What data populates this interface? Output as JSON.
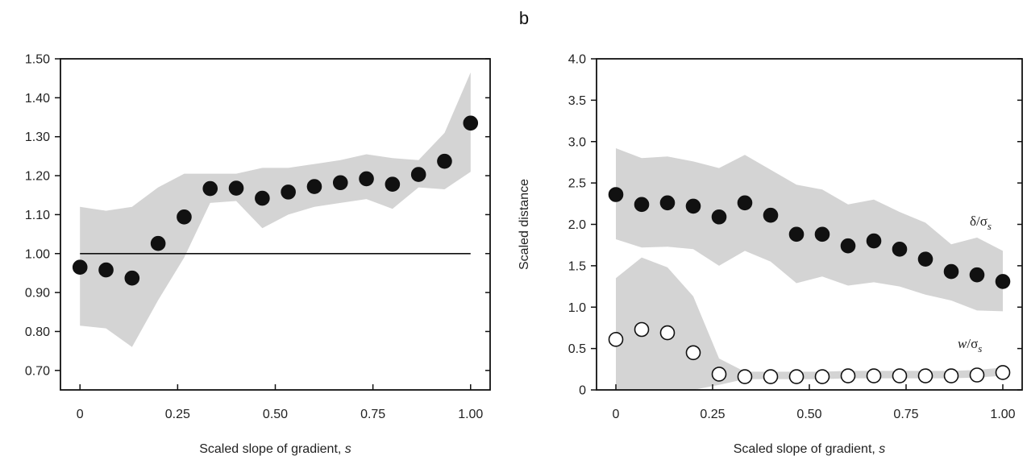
{
  "panel_label": "b",
  "chart_data": [
    {
      "type": "scatter",
      "title": "",
      "xlabel": "Scaled slope of gradient, s",
      "ylabel": "",
      "xlim": [
        -0.05,
        1.05
      ],
      "ylim": [
        0.65,
        1.5
      ],
      "x_ticks": [
        "0",
        "0.25",
        "0.50",
        "0.75",
        "1.00"
      ],
      "x_tick_values": [
        0,
        0.25,
        0.5,
        0.75,
        1.0
      ],
      "y_ticks": [
        "0.70",
        "0.80",
        "0.90",
        "1.00",
        "1.10",
        "1.20",
        "1.30",
        "1.40",
        "1.50"
      ],
      "y_tick_values": [
        0.7,
        0.8,
        0.9,
        1.0,
        1.1,
        1.2,
        1.3,
        1.4,
        1.5
      ],
      "reference_line": 1.0,
      "grid": false,
      "series": [
        {
          "marker": "filled",
          "x": [
            0,
            0.0667,
            0.1333,
            0.2,
            0.2667,
            0.3333,
            0.4,
            0.4667,
            0.5333,
            0.6,
            0.6667,
            0.7333,
            0.8,
            0.8667,
            0.9333,
            1.0
          ],
          "y": [
            0.965,
            0.958,
            0.937,
            1.026,
            1.094,
            1.167,
            1.168,
            1.142,
            1.158,
            1.172,
            1.182,
            1.192,
            1.178,
            1.203,
            1.237,
            1.335
          ],
          "band_low": [
            0.815,
            0.808,
            0.76,
            0.88,
            0.99,
            1.13,
            1.135,
            1.065,
            1.1,
            1.12,
            1.13,
            1.14,
            1.115,
            1.17,
            1.165,
            1.21
          ],
          "band_high": [
            1.12,
            1.11,
            1.12,
            1.17,
            1.205,
            1.205,
            1.205,
            1.22,
            1.22,
            1.23,
            1.24,
            1.255,
            1.245,
            1.24,
            1.31,
            1.465
          ]
        }
      ]
    },
    {
      "type": "scatter",
      "title": "",
      "xlabel": "Scaled slope of gradient, s",
      "ylabel": "Scaled distance",
      "xlim": [
        -0.05,
        1.05
      ],
      "ylim": [
        0,
        4.0
      ],
      "x_ticks": [
        "0",
        "0.25",
        "0.50",
        "0.75",
        "1.00"
      ],
      "x_tick_values": [
        0,
        0.25,
        0.5,
        0.75,
        1.0
      ],
      "y_ticks": [
        "0",
        "0.5",
        "1.0",
        "1.5",
        "2.0",
        "2.5",
        "3.0",
        "3.5",
        "4.0"
      ],
      "y_tick_values": [
        0,
        0.5,
        1.0,
        1.5,
        2.0,
        2.5,
        3.0,
        3.5,
        4.0
      ],
      "grid": false,
      "series": [
        {
          "annotation_main": "δ/σ",
          "annotation_sub": "s",
          "marker": "filled",
          "x": [
            0,
            0.0667,
            0.1333,
            0.2,
            0.2667,
            0.3333,
            0.4,
            0.4667,
            0.5333,
            0.6,
            0.6667,
            0.7333,
            0.8,
            0.8667,
            0.9333,
            1.0
          ],
          "y": [
            2.36,
            2.24,
            2.26,
            2.22,
            2.09,
            2.26,
            2.11,
            1.88,
            1.88,
            1.74,
            1.8,
            1.7,
            1.58,
            1.43,
            1.39,
            1.31
          ],
          "band_low": [
            1.82,
            1.72,
            1.73,
            1.7,
            1.5,
            1.68,
            1.55,
            1.29,
            1.37,
            1.26,
            1.3,
            1.25,
            1.15,
            1.08,
            0.96,
            0.95
          ],
          "band_high": [
            2.92,
            2.8,
            2.82,
            2.76,
            2.68,
            2.84,
            2.66,
            2.48,
            2.42,
            2.24,
            2.3,
            2.15,
            2.02,
            1.76,
            1.84,
            1.68
          ]
        },
        {
          "annotation_main": "w/σ",
          "annotation_sub": "s",
          "marker": "open",
          "x": [
            0,
            0.0667,
            0.1333,
            0.2,
            0.2667,
            0.3333,
            0.4,
            0.4667,
            0.5333,
            0.6,
            0.6667,
            0.7333,
            0.8,
            0.8667,
            0.9333,
            1.0
          ],
          "y": [
            0.61,
            0.73,
            0.69,
            0.45,
            0.19,
            0.16,
            0.16,
            0.16,
            0.16,
            0.17,
            0.17,
            0.17,
            0.17,
            0.17,
            0.18,
            0.21
          ],
          "band_low": [
            0,
            0,
            0,
            0,
            0.06,
            0.13,
            0.13,
            0.13,
            0.13,
            0.14,
            0.14,
            0.14,
            0.14,
            0.14,
            0.15,
            0.17
          ],
          "band_high": [
            1.35,
            1.6,
            1.48,
            1.13,
            0.38,
            0.22,
            0.22,
            0.22,
            0.22,
            0.23,
            0.23,
            0.23,
            0.23,
            0.23,
            0.24,
            0.27
          ]
        }
      ]
    }
  ]
}
